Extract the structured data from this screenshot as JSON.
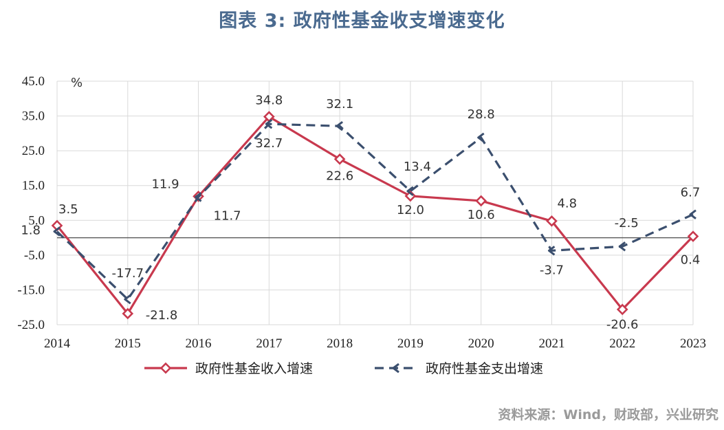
{
  "title": "图表 3:  政府性基金收支增速变化",
  "source": "资料来源：Wind，财政部，兴业研究",
  "chart_data": {
    "type": "line",
    "unit": "%",
    "categories": [
      "2014",
      "2015",
      "2016",
      "2017",
      "2018",
      "2019",
      "2020",
      "2021",
      "2022",
      "2023"
    ],
    "ylim": [
      -25,
      45
    ],
    "yticks": [
      "45.0",
      "35.0",
      "25.0",
      "15.0",
      "5.0",
      "-5.0",
      "-15.0",
      "-25.0"
    ],
    "series": [
      {
        "name": "政府性基金收入增速",
        "color": "#c8394e",
        "style": "solid",
        "marker": "diamond",
        "values": [
          3.5,
          -21.8,
          11.9,
          34.8,
          22.6,
          12.0,
          10.6,
          4.8,
          -20.6,
          0.4
        ],
        "labels": [
          "3.5",
          "-21.8",
          "11.9",
          "34.8",
          "22.6",
          "12.0",
          "10.6",
          "4.8",
          "-20.6",
          "0.4"
        ]
      },
      {
        "name": "政府性基金支出增速",
        "color": "#3b4f6e",
        "style": "dashed",
        "marker": "arrow",
        "values": [
          1.8,
          -17.7,
          11.7,
          32.7,
          32.1,
          13.4,
          28.8,
          -3.7,
          -2.5,
          6.7
        ],
        "labels": [
          "1.8",
          "-17.7",
          "11.7",
          "32.7",
          "32.1",
          "13.4",
          "28.8",
          "-3.7",
          "-2.5",
          "6.7"
        ]
      }
    ]
  }
}
